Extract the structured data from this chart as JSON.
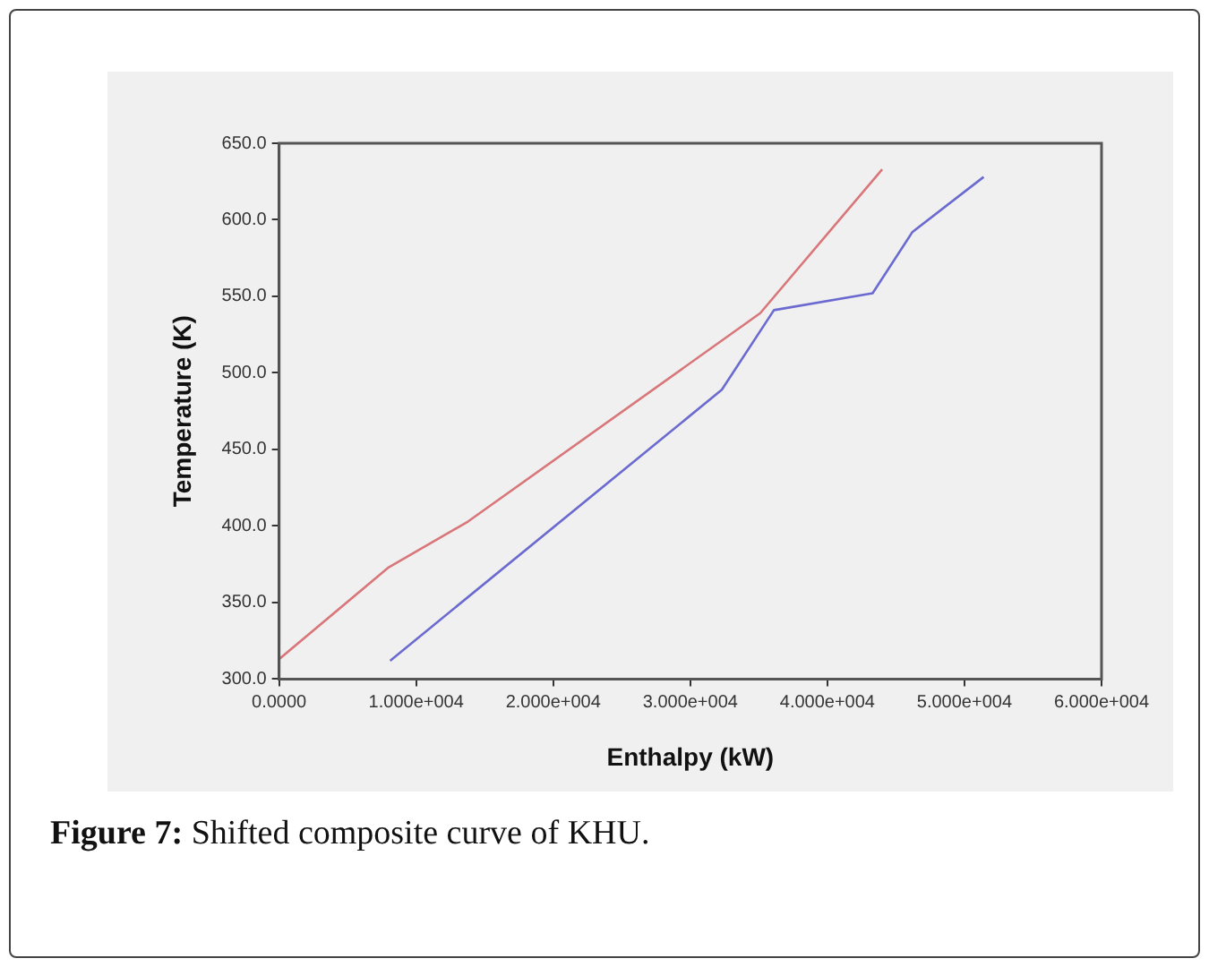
{
  "chart_data": {
    "type": "line",
    "xlabel": "Enthalpy (kW)",
    "ylabel": "Temperature (K)",
    "annotations": [
      "Figure 7: Shifted composite curve of KHU."
    ],
    "series": [
      {
        "color": "#d9767a",
        "x": [
          0,
          8000,
          13800,
          35100,
          44000
        ],
        "values": [
          313,
          373,
          403,
          539,
          633
        ]
      },
      {
        "color": "#6a6ad0",
        "x": [
          8100,
          32300,
          36100,
          43300,
          46200,
          51400
        ],
        "values": [
          312,
          489,
          541,
          552,
          592,
          628
        ]
      }
    ],
    "xlim": [
      0,
      60000
    ],
    "xticks": [
      {
        "value": 0,
        "label": "0.0000"
      },
      {
        "value": 10000,
        "label": "1.000e+004"
      },
      {
        "value": 20000,
        "label": "2.000e+004"
      },
      {
        "value": 30000,
        "label": "3.000e+004"
      },
      {
        "value": 40000,
        "label": "4.000e+004"
      },
      {
        "value": 50000,
        "label": "5.000e+004"
      },
      {
        "value": 60000,
        "label": "6.000e+004"
      }
    ],
    "ylim": [
      300,
      650
    ],
    "yticks": [
      {
        "value": 300,
        "label": "300.0"
      },
      {
        "value": 350,
        "label": "350.0"
      },
      {
        "value": 400,
        "label": "400.0"
      },
      {
        "value": 450,
        "label": "450.0"
      },
      {
        "value": 500,
        "label": "500.0"
      },
      {
        "value": 550,
        "label": "550.0"
      },
      {
        "value": 600,
        "label": "600.0"
      },
      {
        "value": 650,
        "label": "650.0"
      }
    ],
    "grid": false,
    "legend": false,
    "marker": "none",
    "line_style": "solid"
  }
}
